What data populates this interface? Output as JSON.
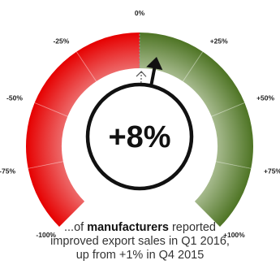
{
  "chart_data": {
    "type": "gauge",
    "value": 8,
    "previous_value": 1,
    "value_label": "+8%",
    "range": [
      -100,
      100
    ],
    "ticks": [
      {
        "value": -100,
        "label": "-100%"
      },
      {
        "value": -75,
        "label": "-75%"
      },
      {
        "value": -50,
        "label": "-50%"
      },
      {
        "value": -25,
        "label": "-25%"
      },
      {
        "value": 0,
        "label": "0%"
      },
      {
        "value": 25,
        "label": "+25%"
      },
      {
        "value": 50,
        "label": "+50%"
      },
      {
        "value": 75,
        "label": "+75%"
      },
      {
        "value": 100,
        "label": "+100%"
      }
    ],
    "colors": {
      "negative_inner": "#f2b8b8",
      "negative_outer": "#e60000",
      "positive_inner": "#e8eedc",
      "positive_outer": "#4e7424",
      "needle": "#111111",
      "previous_marker": "#555555"
    }
  },
  "caption": {
    "prefix": "...of ",
    "bold": "manufacturers",
    "suffix": " reported",
    "line2": "improved export sales in Q1 2016,",
    "line3": "up from +1% in Q4 2015"
  }
}
